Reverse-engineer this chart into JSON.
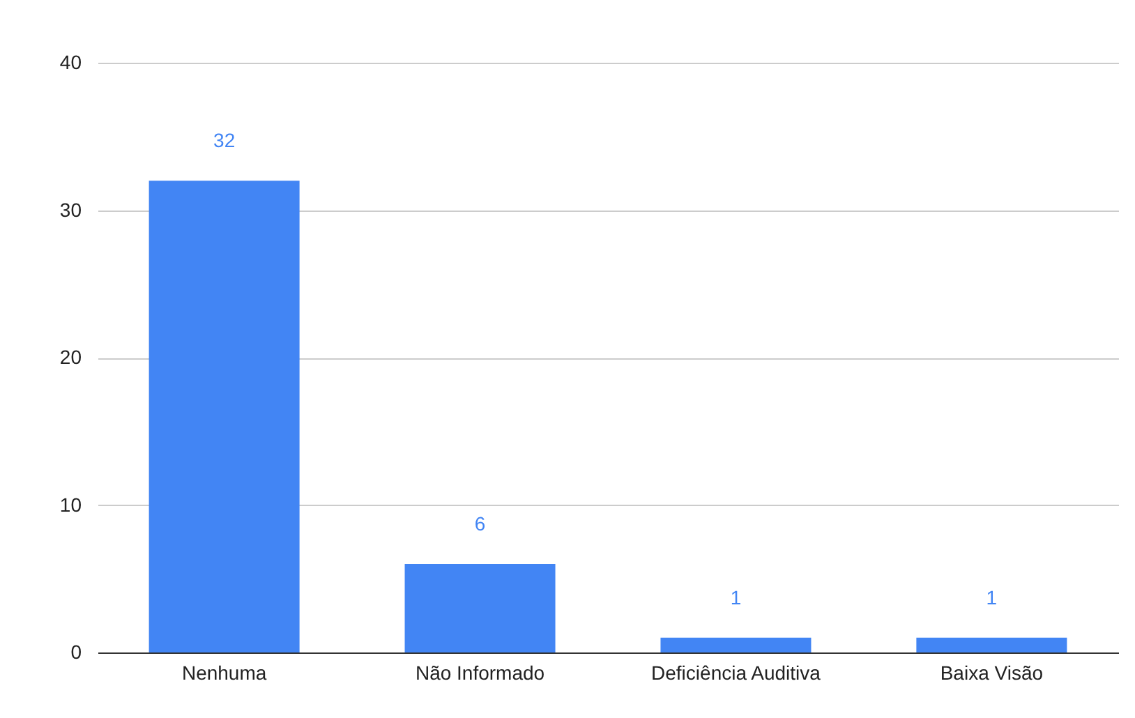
{
  "chart_data": {
    "type": "bar",
    "categories": [
      "Nenhuma",
      "Não Informado",
      "Deficiência Auditiva",
      "Baixa Visão"
    ],
    "values": [
      32,
      6,
      1,
      1
    ],
    "color": "#4285f4",
    "ylim": [
      0,
      40
    ],
    "yticks": [
      0,
      10,
      20,
      30,
      40
    ],
    "grid": "y",
    "data_labels": true
  }
}
